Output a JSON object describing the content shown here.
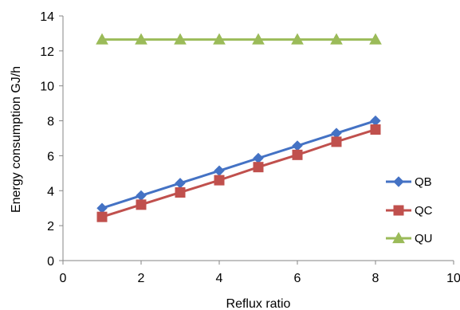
{
  "chart_data": {
    "type": "line",
    "title": "",
    "xlabel": "Reflux ratio",
    "ylabel": "Energy consumption GJ/h",
    "xlim": [
      0,
      10
    ],
    "ylim": [
      0,
      14
    ],
    "xticks": [
      0,
      2,
      4,
      6,
      8,
      10
    ],
    "yticks": [
      0,
      2,
      4,
      6,
      8,
      10,
      12,
      14
    ],
    "grid": false,
    "legend_position": "right",
    "x": [
      1,
      2,
      3,
      4,
      5,
      6,
      7,
      8
    ],
    "series": [
      {
        "name": "QB",
        "color": "#4472C4",
        "marker": "diamond",
        "values": [
          3.0,
          3.72,
          4.43,
          5.14,
          5.86,
          6.57,
          7.29,
          8.0
        ]
      },
      {
        "name": "QC",
        "color": "#C0504D",
        "marker": "square",
        "values": [
          2.5,
          3.2,
          3.9,
          4.6,
          5.35,
          6.05,
          6.8,
          7.5
        ]
      },
      {
        "name": "QU",
        "color": "#9BBB59",
        "marker": "triangle",
        "values": [
          12.65,
          12.65,
          12.65,
          12.65,
          12.65,
          12.65,
          12.65,
          12.65
        ]
      }
    ]
  }
}
